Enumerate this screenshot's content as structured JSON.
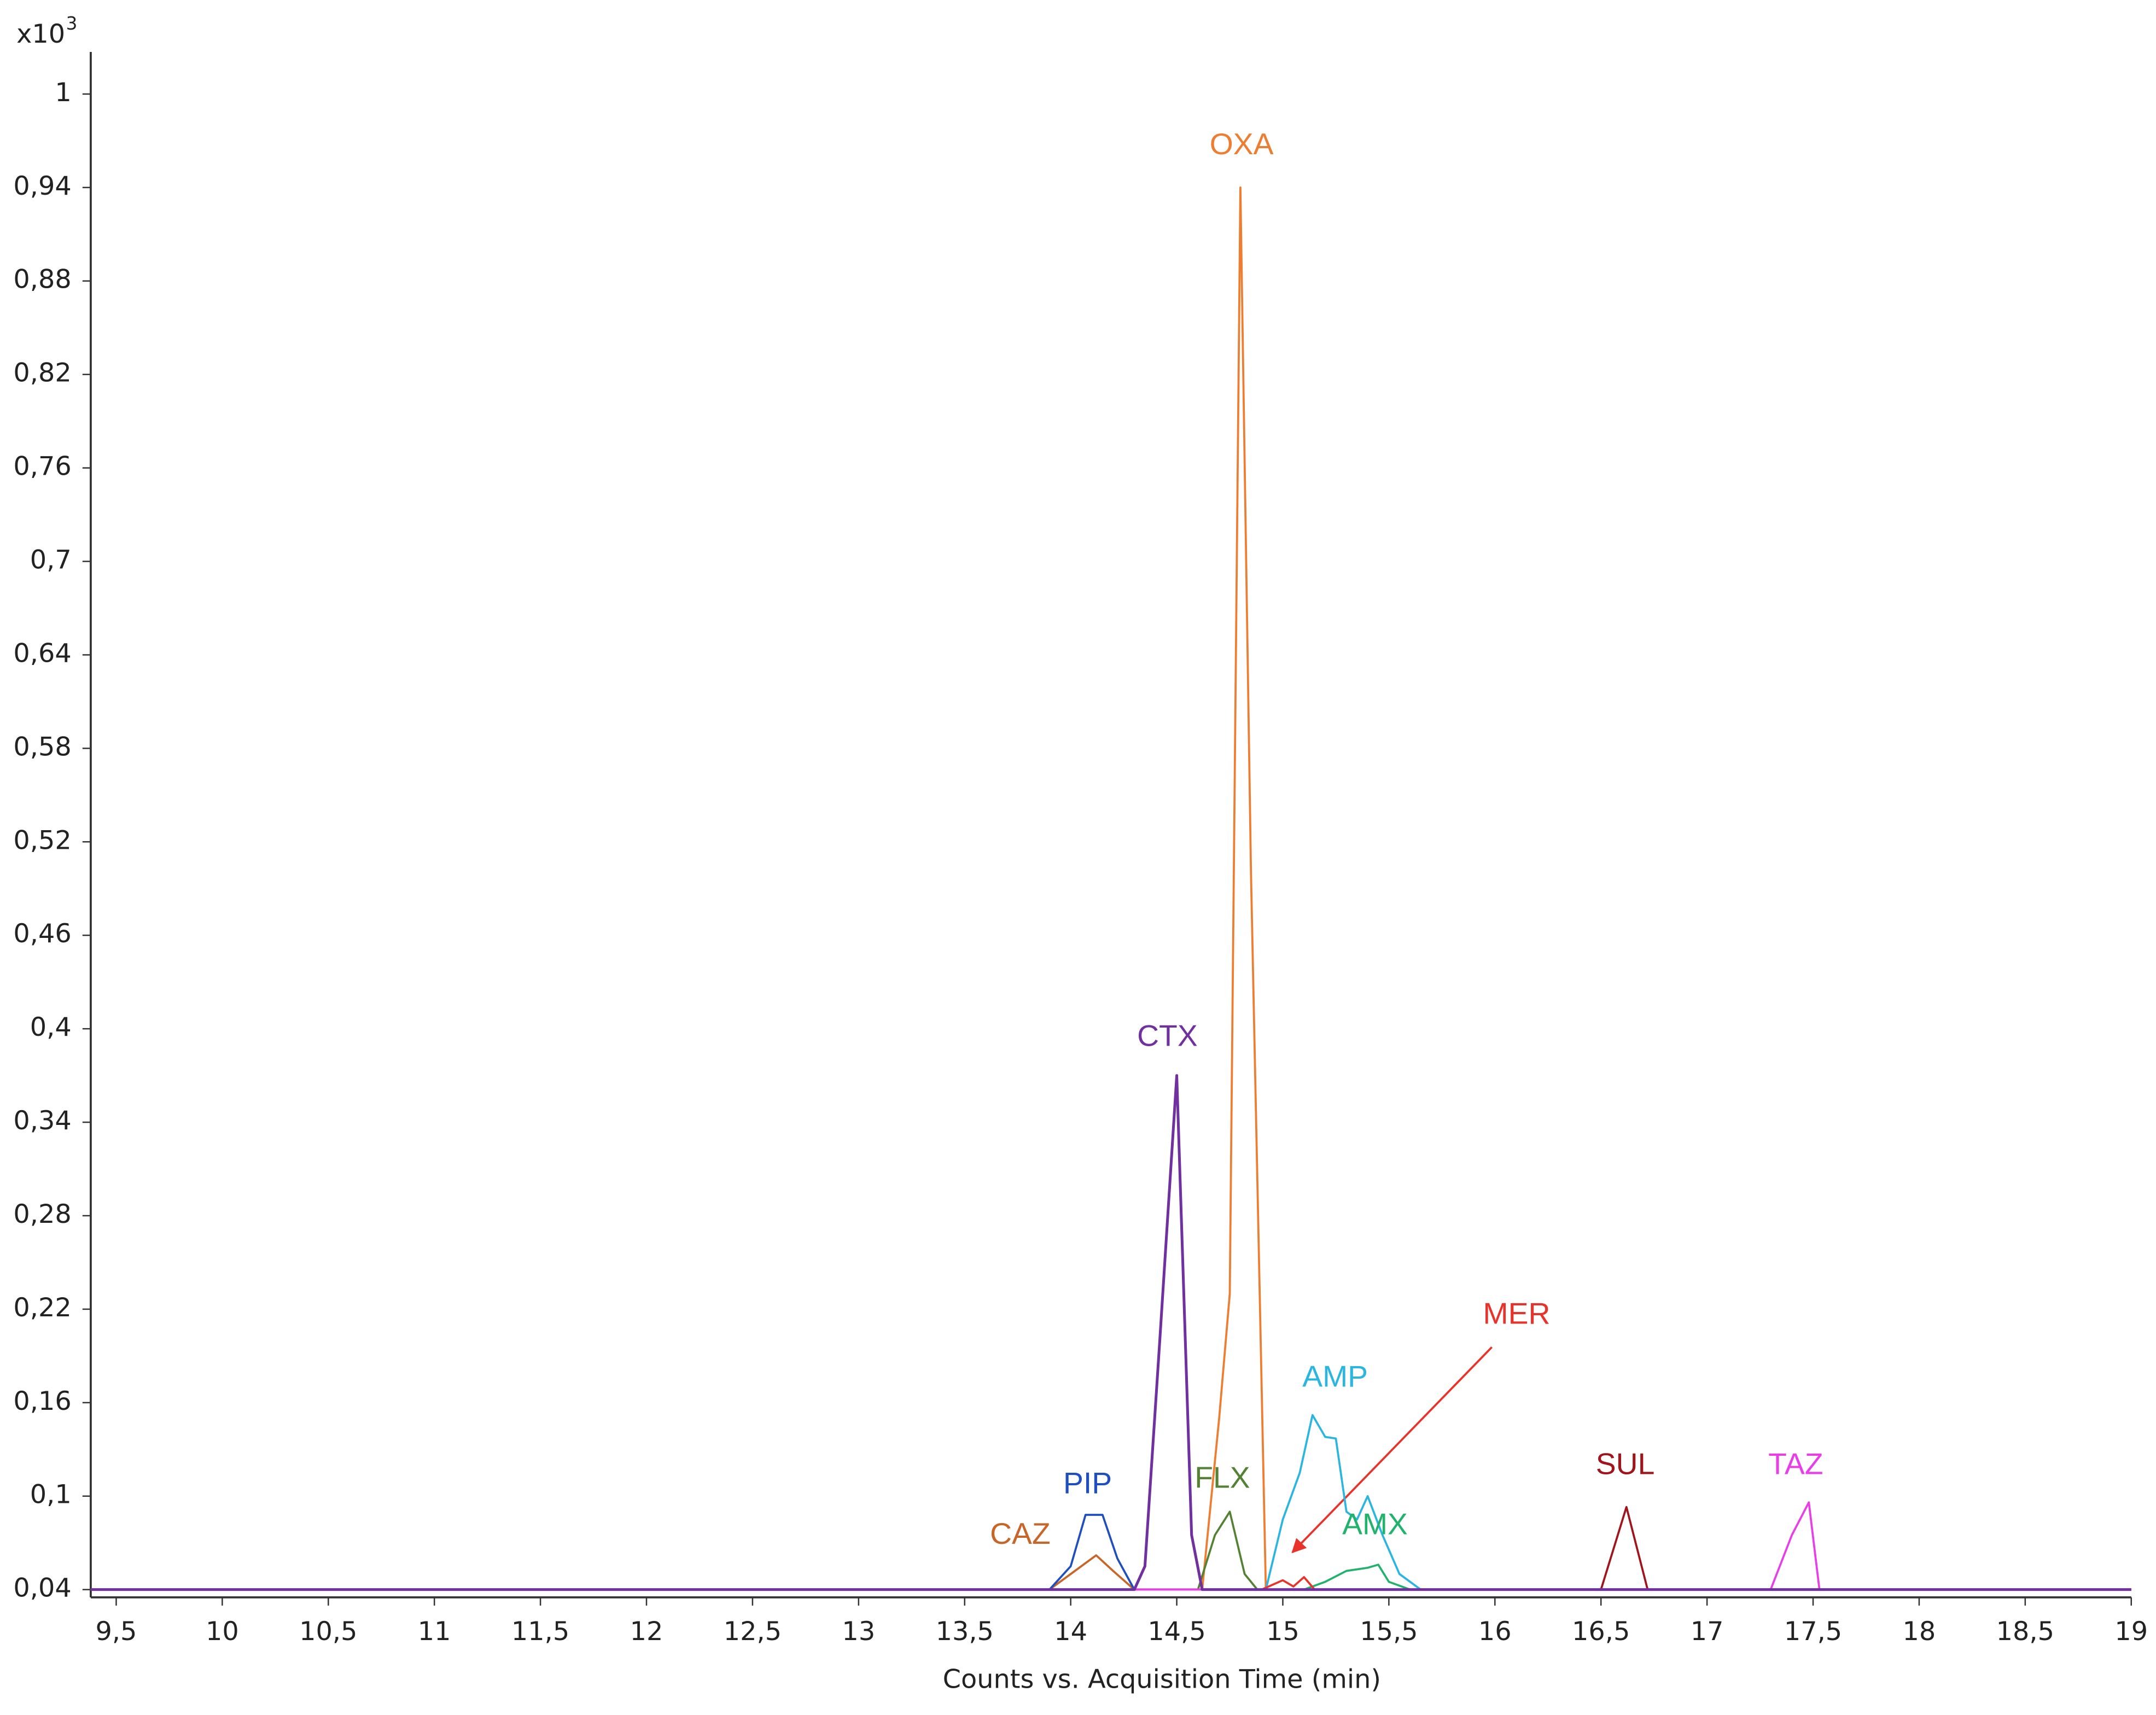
{
  "chart_data": {
    "type": "line",
    "x_axis_title": "Counts vs. Acquisition Time (min)",
    "y_scale_label": "x10",
    "y_scale_exponent": "3",
    "xlim": [
      9.38,
      19
    ],
    "ylim": [
      0.035,
      1.027
    ],
    "xticks": [
      {
        "value": 9.5,
        "label": "9,5"
      },
      10,
      {
        "value": 10.5,
        "label": "10,5"
      },
      11,
      {
        "value": 11.5,
        "label": "11,5"
      },
      12,
      {
        "value": 12.5,
        "label": "12,5"
      },
      13,
      {
        "value": 13.5,
        "label": "13,5"
      },
      14,
      {
        "value": 14.5,
        "label": "14,5"
      },
      15,
      {
        "value": 15.5,
        "label": "15,5"
      },
      16,
      {
        "value": 16.5,
        "label": "16,5"
      },
      17,
      {
        "value": 17.5,
        "label": "17,5"
      },
      18,
      {
        "value": 18.5,
        "label": "18,5"
      },
      19
    ],
    "yticks": [
      {
        "value": 0.04,
        "label": "0,04"
      },
      {
        "value": 0.1,
        "label": "0,1"
      },
      {
        "value": 0.16,
        "label": "0,16"
      },
      {
        "value": 0.22,
        "label": "0,22"
      },
      {
        "value": 0.28,
        "label": "0,28"
      },
      {
        "value": 0.34,
        "label": "0,34"
      },
      {
        "value": 0.4,
        "label": "0,4"
      },
      {
        "value": 0.46,
        "label": "0,46"
      },
      {
        "value": 0.52,
        "label": "0,52"
      },
      {
        "value": 0.58,
        "label": "0,58"
      },
      {
        "value": 0.64,
        "label": "0,64"
      },
      {
        "value": 0.7,
        "label": "0,7"
      },
      {
        "value": 0.76,
        "label": "0,76"
      },
      {
        "value": 0.82,
        "label": "0,82"
      },
      {
        "value": 0.88,
        "label": "0,88"
      },
      {
        "value": 0.94,
        "label": "0,94"
      },
      1
    ],
    "grid": false,
    "series": [
      {
        "name": "OXA",
        "color": "#ed7d31",
        "x": [
          9.38,
          14.62,
          14.7,
          14.75,
          14.8,
          14.85,
          14.92,
          19
        ],
        "values": [
          0.04,
          0.04,
          0.15,
          0.23,
          0.94,
          0.5,
          0.04,
          0.04
        ]
      },
      {
        "name": "CAZ",
        "color": "#c8662a",
        "x": [
          9.38,
          13.9,
          14.0,
          14.12,
          14.2,
          14.3,
          19
        ],
        "values": [
          0.04,
          0.04,
          0.05,
          0.062,
          0.052,
          0.04,
          0.04
        ]
      },
      {
        "name": "PIP",
        "color": "#1f4fbf",
        "x": [
          9.38,
          13.9,
          14.0,
          14.07,
          14.15,
          14.22,
          14.3,
          19
        ],
        "values": [
          0.04,
          0.04,
          0.055,
          0.088,
          0.088,
          0.06,
          0.04,
          0.04
        ]
      },
      {
        "name": "FLX",
        "color": "#548235",
        "x": [
          9.38,
          14.6,
          14.68,
          14.75,
          14.82,
          14.88,
          19
        ],
        "values": [
          0.04,
          0.04,
          0.075,
          0.09,
          0.05,
          0.04,
          0.04
        ]
      },
      {
        "name": "AMP",
        "color": "#2bb5e0",
        "x": [
          9.38,
          14.92,
          15.0,
          15.08,
          15.14,
          15.2,
          15.25,
          15.3,
          15.35,
          15.4,
          15.47,
          15.55,
          15.65,
          19
        ],
        "values": [
          0.04,
          0.04,
          0.085,
          0.115,
          0.152,
          0.138,
          0.137,
          0.09,
          0.085,
          0.1,
          0.075,
          0.05,
          0.04,
          0.04
        ]
      },
      {
        "name": "AMX",
        "color": "#21b36b",
        "x": [
          9.38,
          15.1,
          15.2,
          15.3,
          15.4,
          15.45,
          15.5,
          15.6,
          19
        ],
        "values": [
          0.04,
          0.04,
          0.045,
          0.052,
          0.054,
          0.056,
          0.045,
          0.04,
          0.04
        ]
      },
      {
        "name": "MER",
        "color": "#e8322a",
        "x": [
          9.38,
          14.9,
          15.0,
          15.05,
          15.1,
          15.15,
          19
        ],
        "values": [
          0.04,
          0.04,
          0.046,
          0.042,
          0.048,
          0.04,
          0.04
        ]
      },
      {
        "name": "SUL",
        "color": "#a0151c",
        "x": [
          9.38,
          16.5,
          16.62,
          16.72,
          19
        ],
        "values": [
          0.04,
          0.04,
          0.093,
          0.04,
          0.04
        ]
      },
      {
        "name": "TAZ",
        "color": "#e83ee8",
        "x": [
          9.38,
          17.3,
          17.4,
          17.48,
          17.53,
          19
        ],
        "values": [
          0.04,
          0.04,
          0.075,
          0.096,
          0.04,
          0.04
        ]
      },
      {
        "name": "CTX",
        "color": "#7030a0",
        "x": [
          9.38,
          14.3,
          14.35,
          14.42,
          14.5,
          14.57,
          14.62,
          19
        ],
        "values": [
          0.04,
          0.04,
          0.055,
          0.2,
          0.37,
          0.075,
          0.04,
          0.04
        ]
      }
    ]
  }
}
